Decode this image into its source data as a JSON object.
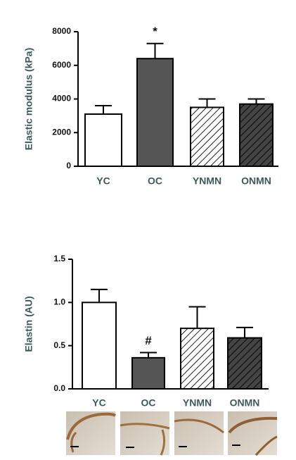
{
  "chart_data": [
    {
      "type": "bar",
      "y_label": "Elastic modulus (kPa)",
      "categories": [
        "YC",
        "OC",
        "YNMN",
        "ONMN"
      ],
      "values": [
        3100,
        6400,
        3500,
        3700
      ],
      "errors": [
        500,
        900,
        500,
        300
      ],
      "colors": [
        "#ffffff",
        "#555555",
        "#ffffff",
        "#444444"
      ],
      "hatch": [
        false,
        false,
        true,
        true
      ],
      "ylim": [
        0,
        8000
      ],
      "yticks": [
        0,
        2000,
        4000,
        6000,
        8000
      ],
      "annotations": [
        {
          "text": "*",
          "category": "OC"
        }
      ]
    },
    {
      "type": "bar",
      "y_label": "Elastin (AU)",
      "categories": [
        "YC",
        "OC",
        "YNMN",
        "ONMN"
      ],
      "values": [
        1.0,
        0.36,
        0.7,
        0.59
      ],
      "errors": [
        0.15,
        0.06,
        0.25,
        0.12
      ],
      "colors": [
        "#ffffff",
        "#555555",
        "#ffffff",
        "#444444"
      ],
      "hatch": [
        false,
        false,
        true,
        true
      ],
      "ylim": [
        0,
        1.5
      ],
      "yticks": [
        {
          "value": 0,
          "label": "0.0"
        },
        0.5,
        {
          "value": 1,
          "label": "1.0"
        },
        1.5
      ],
      "annotations": [
        {
          "text": "#",
          "category": "OC"
        }
      ]
    }
  ]
}
